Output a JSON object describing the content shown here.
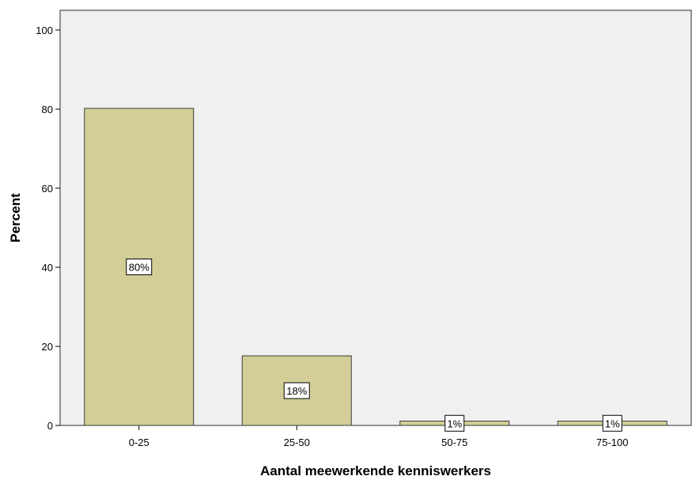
{
  "chart_data": {
    "type": "bar",
    "categories": [
      "0-25",
      "25-50",
      "50-75",
      "75-100"
    ],
    "values": [
      80.2,
      17.6,
      1.1,
      1.1
    ],
    "data_labels": [
      "80%",
      "18%",
      "1%",
      "1%"
    ],
    "xlabel": "Aantal meewerkende kenniswerkers",
    "ylabel": "Percent",
    "ylim": [
      0,
      105
    ],
    "yticks": [
      0,
      20,
      40,
      60,
      80,
      100
    ],
    "ytick_labels": [
      "0",
      "20",
      "40",
      "60",
      "80",
      "100"
    ],
    "grid": false,
    "colors": {
      "plot_background": "#f0f0f0",
      "bar_fill": "#d3ce97",
      "bar_stroke": "#3a3a3a"
    }
  }
}
